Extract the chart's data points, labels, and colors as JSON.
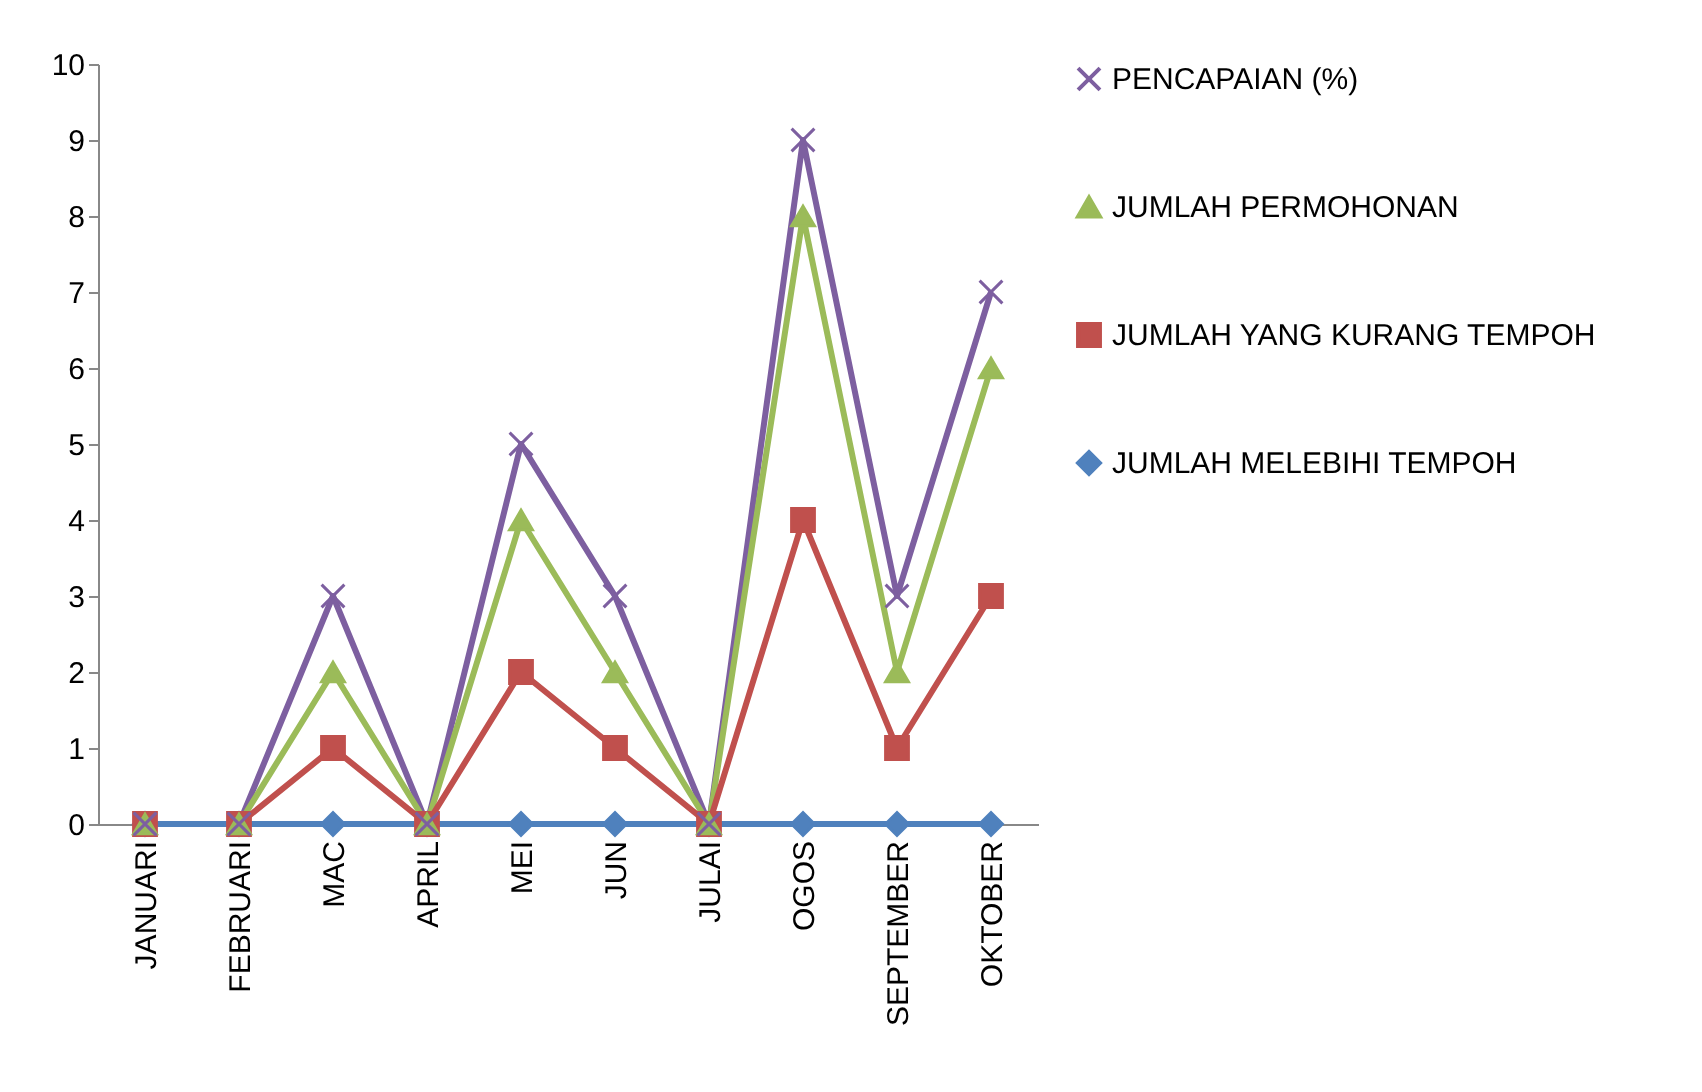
{
  "chart_data": {
    "type": "line",
    "categories": [
      "JANUARI",
      "FEBRUARI",
      "MAC",
      "APRIL",
      "MEI",
      "JUN",
      "JULAI",
      "OGOS",
      "SEPTEMBER",
      "OKTOBER"
    ],
    "series": [
      {
        "name": "PENCAPAIAN (%)",
        "color": "#7d5fa0",
        "marker": "cross",
        "values": [
          0,
          0,
          3,
          0,
          5,
          3,
          0,
          9,
          3,
          7
        ]
      },
      {
        "name": "JUMLAH PERMOHONAN",
        "color": "#9bbb59",
        "marker": "triangle",
        "values": [
          0,
          0,
          2,
          0,
          4,
          2,
          0,
          8,
          2,
          6
        ]
      },
      {
        "name": "JUMLAH YANG KURANG TEMPOH",
        "color": "#c0504d",
        "marker": "square",
        "values": [
          0,
          0,
          1,
          0,
          2,
          1,
          0,
          4,
          1,
          3
        ]
      },
      {
        "name": "JUMLAH MELEBIHI TEMPOH",
        "color": "#4f81bd",
        "marker": "diamond",
        "values": [
          0,
          0,
          0,
          0,
          0,
          0,
          0,
          0,
          0,
          0
        ]
      }
    ],
    "ylim": [
      0,
      10
    ],
    "yticks": [
      0,
      1,
      2,
      3,
      4,
      5,
      6,
      7,
      8,
      9,
      10
    ],
    "grid": false,
    "legend": "right",
    "line_style": "solid"
  }
}
